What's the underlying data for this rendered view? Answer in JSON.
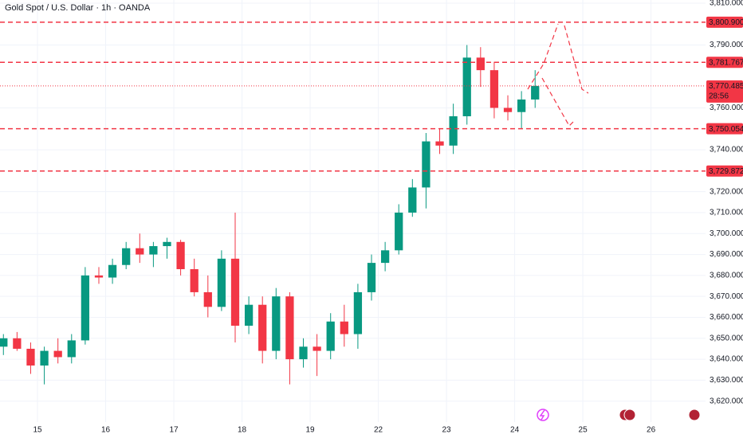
{
  "chart_data": {
    "type": "candlestick",
    "title": "Gold Spot / U.S. Dollar · 1h · OANDA",
    "x": [
      -0.5,
      -0.3,
      -0.1,
      0.1,
      0.3,
      0.5,
      0.7,
      0.9,
      1.1,
      1.3,
      1.5,
      1.7,
      1.9,
      2.1,
      2.3,
      2.5,
      2.7,
      2.9,
      3.1,
      3.3,
      3.5,
      3.7,
      3.9,
      4.1,
      4.3,
      4.5,
      4.7,
      4.9,
      5.1,
      5.3,
      5.5,
      5.7,
      5.9,
      6.1,
      6.3,
      6.5,
      6.7,
      6.9,
      7.1,
      7.3
    ],
    "open": [
      3646,
      3650,
      3645,
      3637,
      3644,
      3641,
      3649,
      3680,
      3679,
      3685,
      3693,
      3690,
      3694,
      3696,
      3683,
      3672,
      3665,
      3688,
      3656,
      3666,
      3644,
      3670,
      3640,
      3646,
      3644,
      3658,
      3652,
      3672,
      3686,
      3692,
      3710,
      3722,
      3744,
      3742,
      3756,
      3784,
      3778,
      3760,
      3758,
      3764
    ],
    "high": [
      3652,
      3653,
      3648,
      3646,
      3650,
      3652,
      3684,
      3684,
      3688,
      3696,
      3700,
      3696,
      3698,
      3697,
      3688,
      3680,
      3692,
      3710,
      3670,
      3670,
      3674,
      3672,
      3650,
      3652,
      3662,
      3666,
      3676,
      3690,
      3696,
      3714,
      3726,
      3748,
      3750,
      3762,
      3790,
      3789,
      3782,
      3766,
      3768,
      3778
    ],
    "low": [
      3642,
      3644,
      3633,
      3628,
      3638,
      3638,
      3647,
      3676,
      3676,
      3683,
      3686,
      3684,
      3688,
      3680,
      3670,
      3660,
      3663,
      3648,
      3652,
      3638,
      3640,
      3628,
      3636,
      3632,
      3640,
      3646,
      3645,
      3668,
      3682,
      3690,
      3708,
      3712,
      3738,
      3738,
      3752,
      3770,
      3755,
      3754,
      3750,
      3760
    ],
    "close": [
      3650,
      3645,
      3637,
      3644,
      3641,
      3649,
      3680,
      3679,
      3685,
      3693,
      3690,
      3694,
      3696,
      3683,
      3672,
      3665,
      3688,
      3656,
      3666,
      3644,
      3670,
      3640,
      3646,
      3644,
      3658,
      3652,
      3672,
      3686,
      3692,
      3710,
      3722,
      3744,
      3742,
      3756,
      3784,
      3778,
      3760,
      3758,
      3764,
      3770.485
    ],
    "up_color": "#089981",
    "down_color": "#f23645",
    "xlim": [
      -0.55,
      9.8
    ],
    "xticks": [
      {
        "value": 0,
        "label": "15"
      },
      {
        "value": 1,
        "label": "16"
      },
      {
        "value": 2,
        "label": "17"
      },
      {
        "value": 3,
        "label": "18"
      },
      {
        "value": 4,
        "label": "19"
      },
      {
        "value": 5,
        "label": "22"
      },
      {
        "value": 6,
        "label": "23"
      },
      {
        "value": 7,
        "label": "24"
      },
      {
        "value": 8,
        "label": "25"
      },
      {
        "value": 9,
        "label": "26"
      }
    ],
    "ylim": [
      3610,
      3811.5
    ],
    "yticks": [
      {
        "value": 3620,
        "label": "3,620.000"
      },
      {
        "value": 3630,
        "label": "3,630.000"
      },
      {
        "value": 3640,
        "label": "3,640.000"
      },
      {
        "value": 3650,
        "label": "3,650.000"
      },
      {
        "value": 3660,
        "label": "3,660.000"
      },
      {
        "value": 3670,
        "label": "3,670.000"
      },
      {
        "value": 3680,
        "label": "3,680.000"
      },
      {
        "value": 3690,
        "label": "3,690.000"
      },
      {
        "value": 3700,
        "label": "3,700.000"
      },
      {
        "value": 3710,
        "label": "3,710.000"
      },
      {
        "value": 3720,
        "label": "3,720.000"
      },
      {
        "value": 3740,
        "label": "3,740.000"
      },
      {
        "value": 3760,
        "label": "3,760.000"
      },
      {
        "value": 3790,
        "label": "3,790.000"
      },
      {
        "value": 3810,
        "label": "3,810.000"
      }
    ],
    "levels": [
      {
        "value": 3800.9,
        "label": "3,800.900"
      },
      {
        "value": 3781.767,
        "label": "3,781.767"
      },
      {
        "value": 3750.054,
        "label": "3,750.054"
      },
      {
        "value": 3729.872,
        "label": "3,729.872"
      }
    ],
    "level_color": "#f23645",
    "last_price": {
      "value": 3770.485,
      "label": "3,770.485"
    },
    "countdown": "28:56"
  }
}
